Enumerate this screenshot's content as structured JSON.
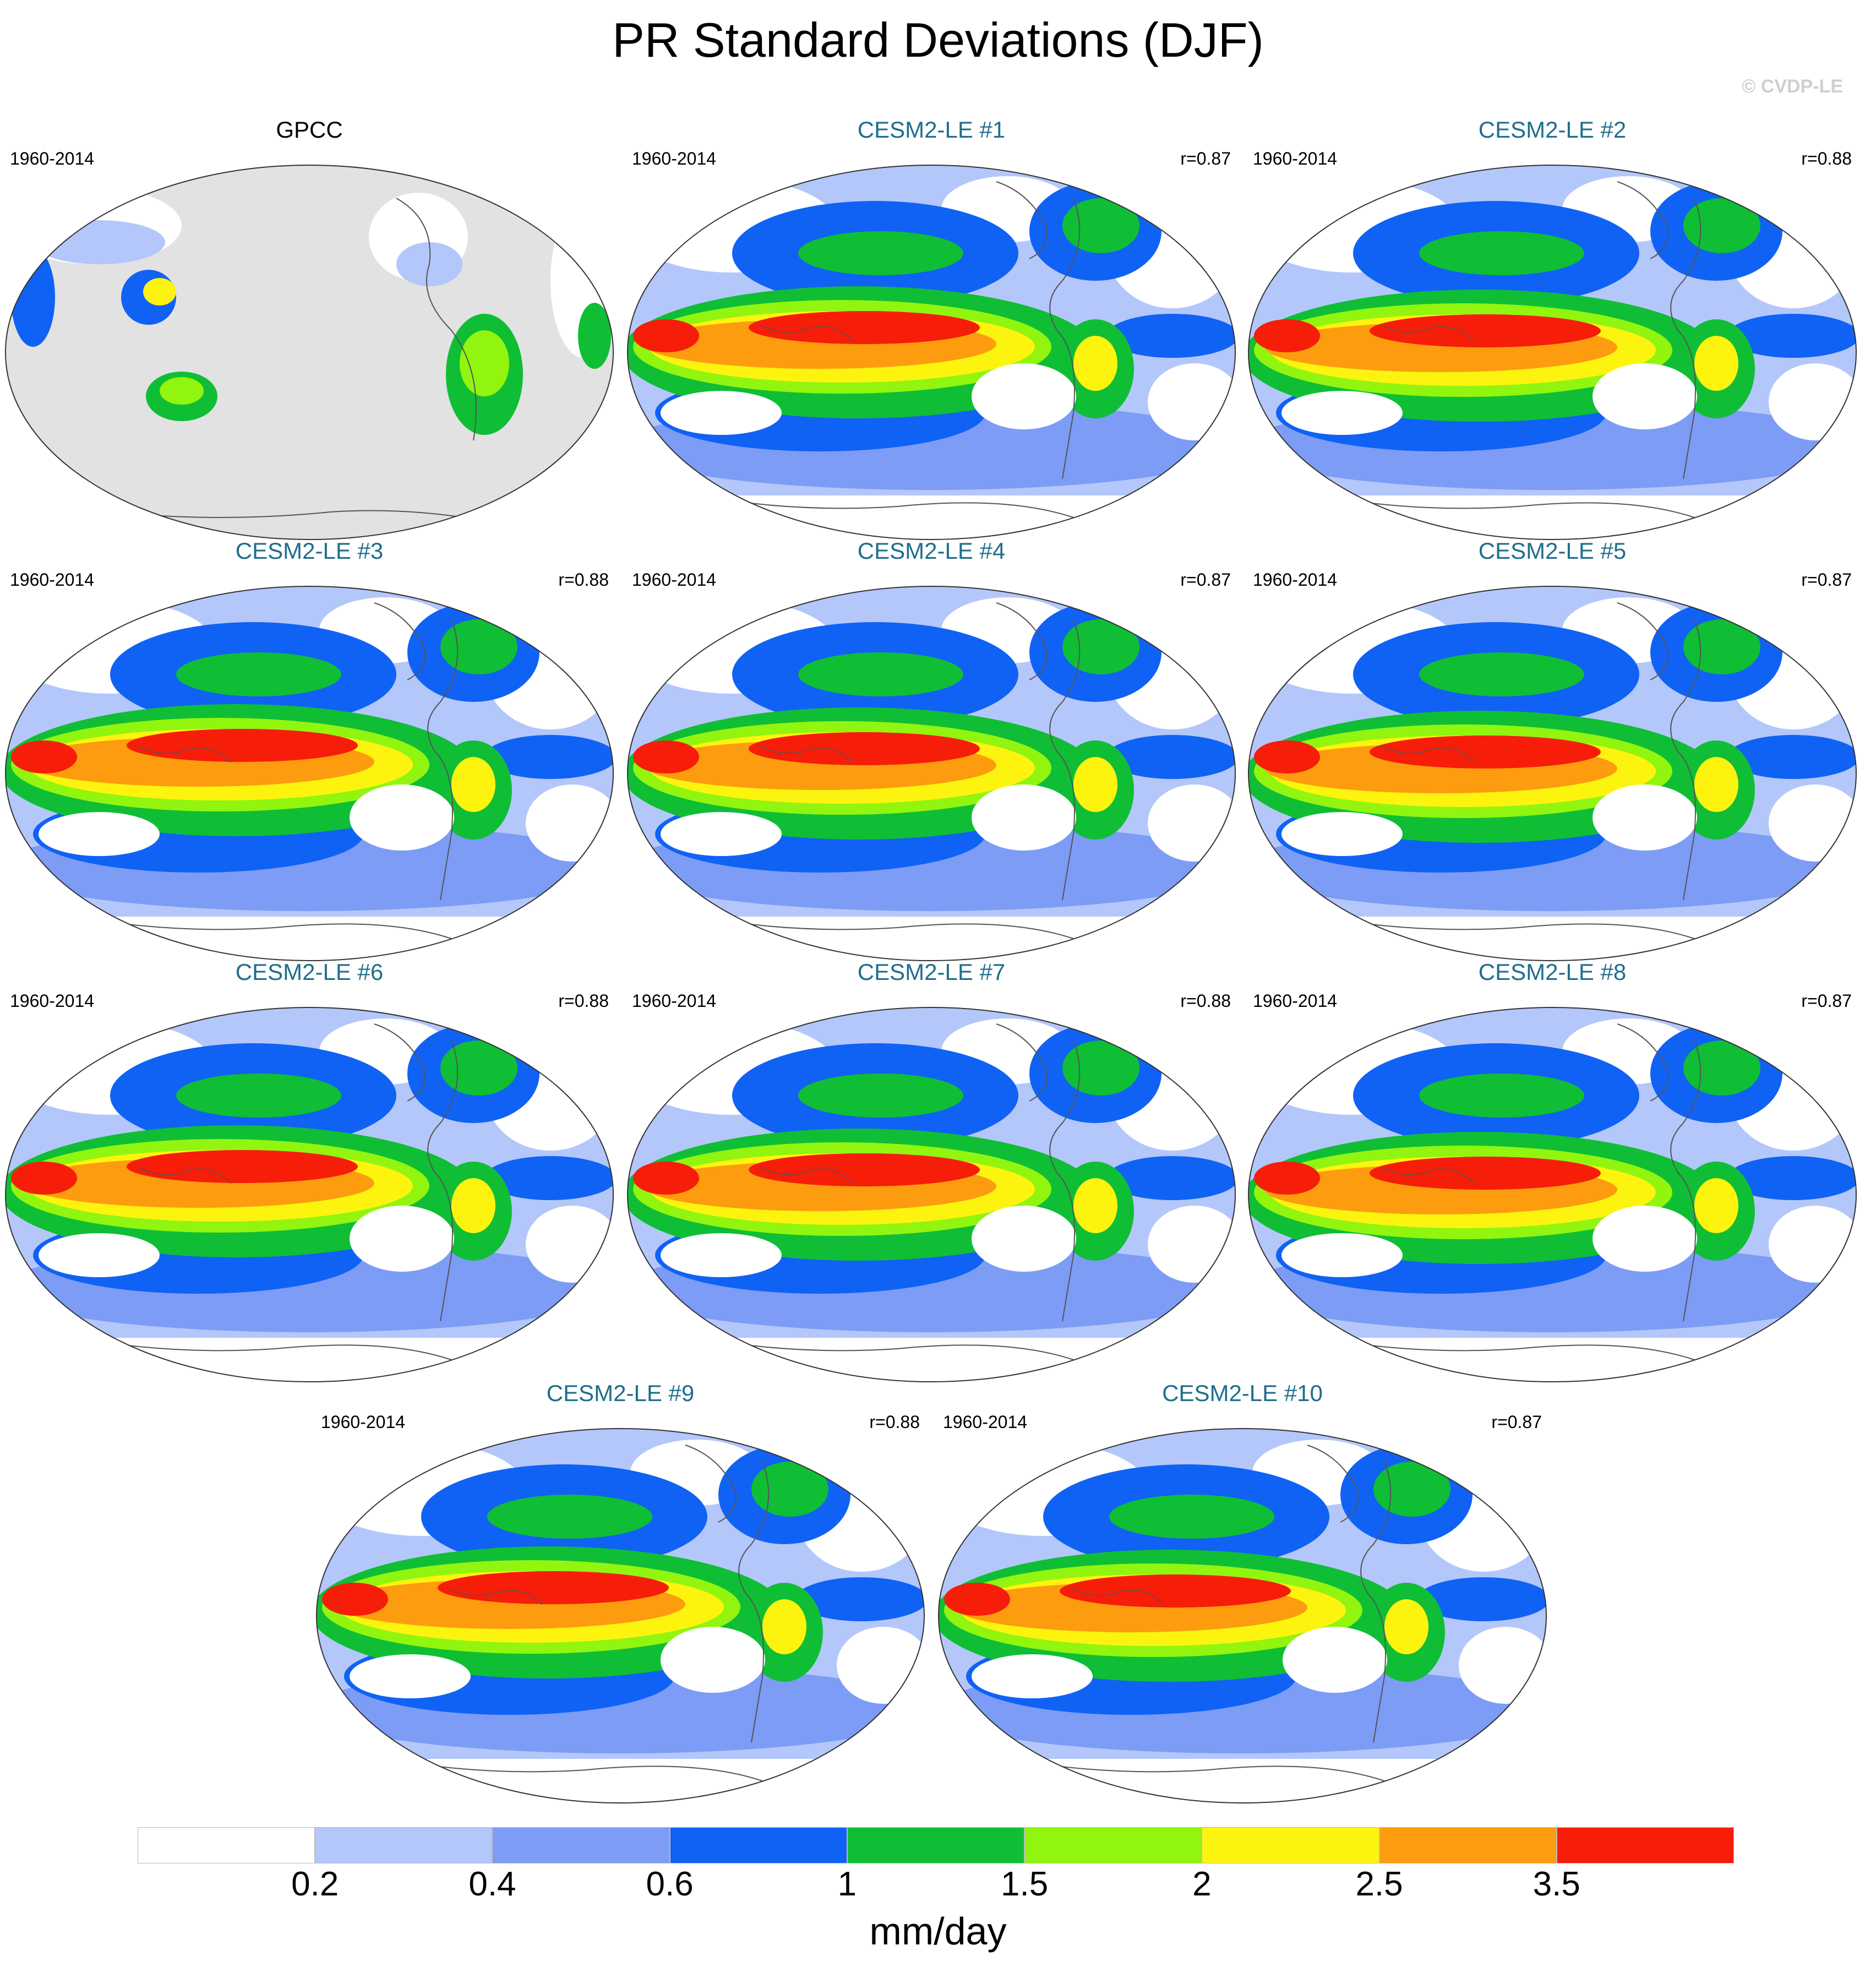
{
  "title": "PR Standard Deviations (DJF)",
  "watermark": "© CVDP-LE",
  "panels": [
    {
      "name": "GPCC",
      "period": "1960-2014",
      "r": "",
      "type": "obs"
    },
    {
      "name": "CESM2-LE #1",
      "period": "1960-2014",
      "r": "r=0.87",
      "type": "model"
    },
    {
      "name": "CESM2-LE #2",
      "period": "1960-2014",
      "r": "r=0.88",
      "type": "model"
    },
    {
      "name": "CESM2-LE #3",
      "period": "1960-2014",
      "r": "r=0.88",
      "type": "model"
    },
    {
      "name": "CESM2-LE #4",
      "period": "1960-2014",
      "r": "r=0.87",
      "type": "model"
    },
    {
      "name": "CESM2-LE #5",
      "period": "1960-2014",
      "r": "r=0.87",
      "type": "model"
    },
    {
      "name": "CESM2-LE #6",
      "period": "1960-2014",
      "r": "r=0.88",
      "type": "model"
    },
    {
      "name": "CESM2-LE #7",
      "period": "1960-2014",
      "r": "r=0.88",
      "type": "model"
    },
    {
      "name": "CESM2-LE #8",
      "period": "1960-2014",
      "r": "r=0.87",
      "type": "model"
    },
    {
      "name": "CESM2-LE #9",
      "period": "1960-2014",
      "r": "r=0.88",
      "type": "model"
    },
    {
      "name": "CESM2-LE #10",
      "period": "1960-2014",
      "r": "r=0.87",
      "type": "model"
    }
  ],
  "colorbar": {
    "units": "mm/day",
    "colors": [
      "#ffffff",
      "#b4c7fa",
      "#7c9cf6",
      "#0f62f4",
      "#0fbe35",
      "#91f50f",
      "#fcf40f",
      "#fd9c0f",
      "#f61d09"
    ],
    "ticks": [
      "0.2",
      "0.4",
      "0.6",
      "1",
      "1.5",
      "2",
      "2.5",
      "3.5"
    ]
  },
  "colors": {
    "land_gray": "#e2e2e2",
    "title_teal": "#1f6e8c"
  }
}
